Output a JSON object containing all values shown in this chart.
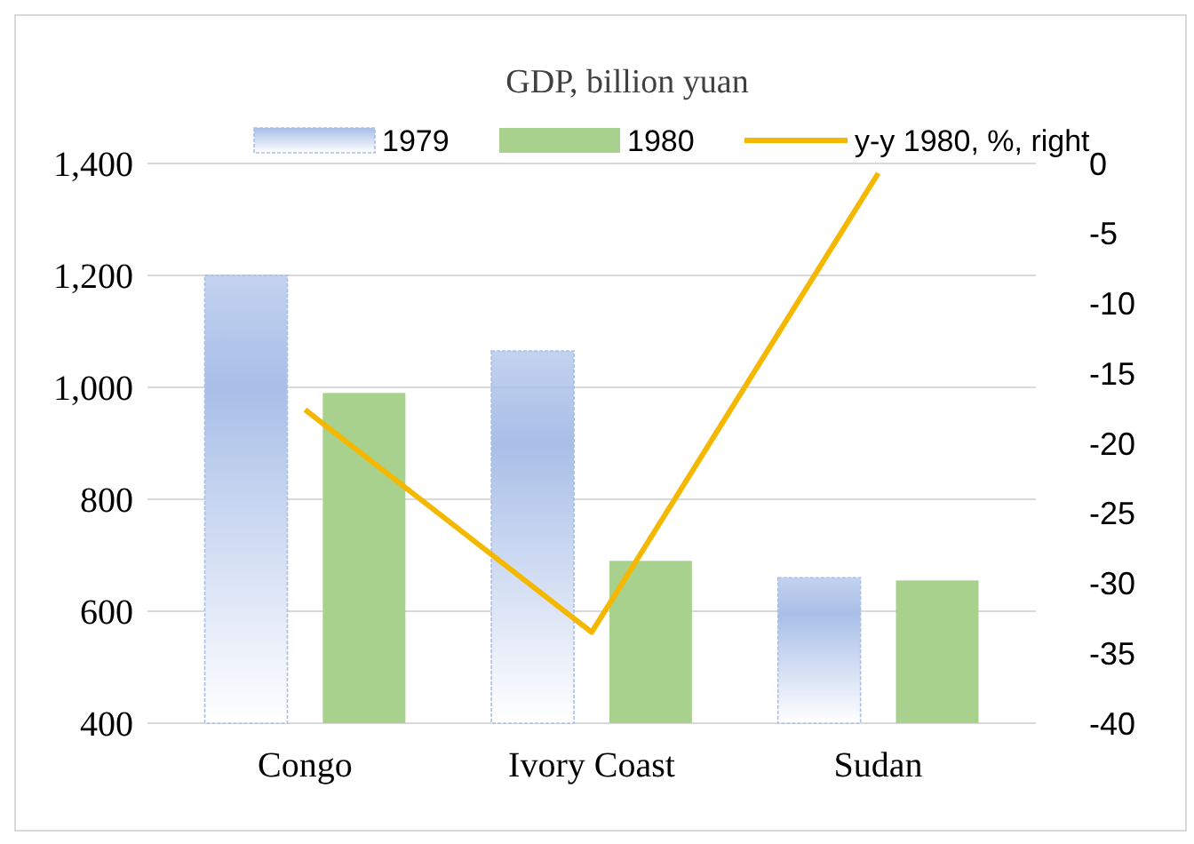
{
  "chart_data": {
    "type": "bar",
    "title": "GDP, billion yuan",
    "categories": [
      "Congo",
      "Ivory Coast",
      "Sudan"
    ],
    "series": [
      {
        "name": "1979",
        "color": "#a9bfe8",
        "values": [
          1200,
          1065,
          660
        ]
      },
      {
        "name": "1980",
        "color": "#a9d18e",
        "values": [
          990,
          690,
          655
        ]
      },
      {
        "name": "y-y 1980, %, right",
        "type": "line",
        "axis": "y2",
        "color": "#f5b800",
        "values": [
          -17.6,
          -33.5,
          -0.7
        ]
      }
    ],
    "ylim": [
      400,
      1400
    ],
    "yticks": [
      {
        "value": 400,
        "label": "400"
      },
      {
        "value": 600,
        "label": "600"
      },
      {
        "value": 800,
        "label": "800"
      },
      {
        "value": 1000,
        "label": "1,000"
      },
      {
        "value": 1200,
        "label": "1,200"
      },
      {
        "value": 1400,
        "label": "1,400"
      }
    ],
    "y2lim": [
      -40,
      0
    ],
    "y2ticks": [
      -40,
      -35,
      -30,
      -25,
      -20,
      -15,
      -10,
      -5,
      0
    ],
    "grid": "y",
    "legend": "top",
    "marker": "none",
    "line_style": "solid"
  }
}
